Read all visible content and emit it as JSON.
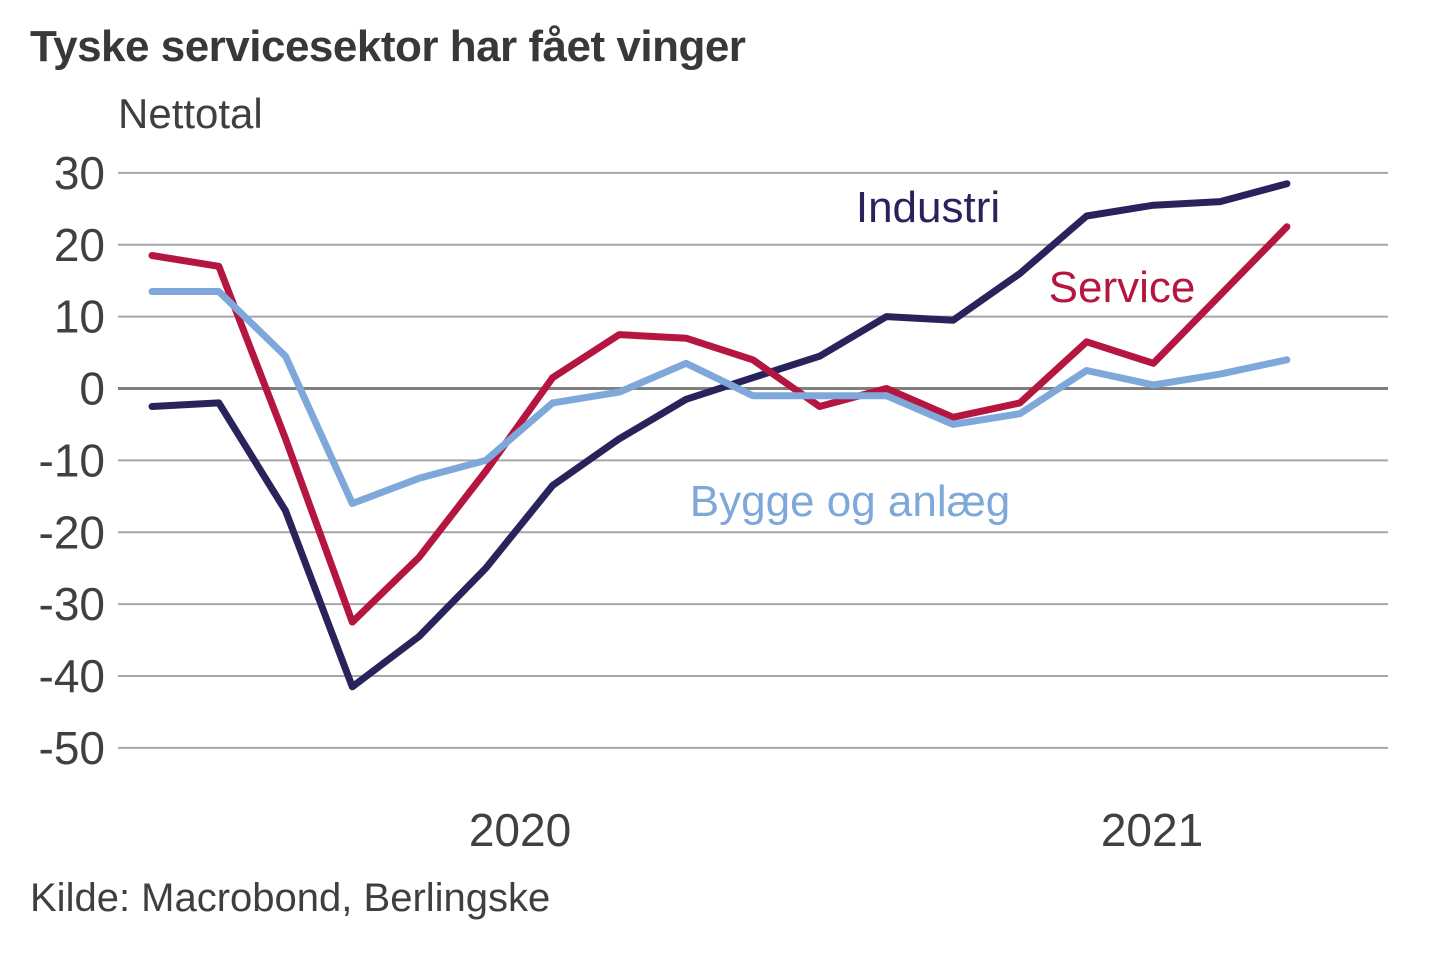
{
  "title": "Tyske servicesektor har fået vinger",
  "subtitle": "Nettotal",
  "source": "Kilde: Macrobond, Berlingske",
  "chart_data": {
    "type": "line",
    "x": [
      "2020-01",
      "2020-02",
      "2020-03",
      "2020-04",
      "2020-05",
      "2020-06",
      "2020-07",
      "2020-08",
      "2020-09",
      "2020-10",
      "2020-11",
      "2020-12",
      "2021-01",
      "2021-02",
      "2021-03",
      "2021-04",
      "2021-05",
      "2021-06"
    ],
    "series": [
      {
        "name": "Industri",
        "color": "#29235c",
        "values": [
          -2.5,
          -2,
          -17,
          -41.5,
          -34.5,
          -25,
          -13.5,
          -7,
          -1.5,
          1.5,
          4.5,
          10,
          9.5,
          16,
          24,
          25.5,
          26,
          28.5
        ]
      },
      {
        "name": "Service",
        "color": "#b5163f",
        "values": [
          18.5,
          17,
          -7,
          -32.5,
          -23.5,
          -11.5,
          1.5,
          7.5,
          7,
          4,
          -2.5,
          0,
          -4,
          -2,
          6.5,
          3.5,
          13,
          22.5
        ]
      },
      {
        "name": "Bygge og anlæg",
        "color": "#7fa8da",
        "values": [
          13.5,
          13.5,
          4.5,
          -16,
          -12.5,
          -10,
          -2,
          -0.5,
          3.5,
          -1,
          -1,
          -1,
          -5,
          -3.5,
          2.5,
          0.5,
          2,
          4
        ]
      }
    ],
    "yticks": [
      30,
      20,
      10,
      0,
      -10,
      -20,
      -30,
      -40,
      -50
    ],
    "ylim": [
      -50,
      30
    ],
    "xtick_labels": [
      "2020",
      "2021"
    ],
    "ylabel": "Nettotal",
    "grid": true,
    "legend": "inline-labels",
    "colors": {
      "grid": "#a6a6a6",
      "zero_line": "#7f7f7f",
      "axis_text": "#404040"
    }
  }
}
